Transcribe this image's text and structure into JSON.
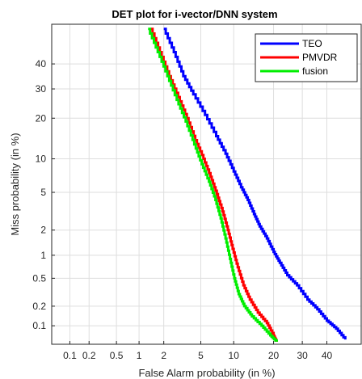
{
  "chart_data": {
    "type": "line",
    "title": "DET plot for i-vector/DNN system",
    "xlabel": "False Alarm probability (in %)",
    "ylabel": "Miss probability (in %)",
    "x_scale": "probit",
    "y_scale": "probit",
    "xlim": [
      0.05,
      55
    ],
    "ylim": [
      0.05,
      57
    ],
    "x_ticks": [
      0.1,
      0.2,
      0.5,
      1,
      2,
      5,
      10,
      20,
      30,
      40
    ],
    "x_tick_labels": [
      "0.1",
      "0.2",
      "0.5",
      "1",
      "2",
      "5",
      "10",
      "20",
      "30",
      "40"
    ],
    "y_ticks": [
      0.1,
      0.2,
      0.5,
      1,
      2,
      5,
      10,
      20,
      30,
      40
    ],
    "y_tick_labels": [
      "0.1",
      "0.2",
      "0.5",
      "1",
      "2",
      "5",
      "10",
      "20",
      "30",
      "40"
    ],
    "grid": true,
    "legend_position": "top-right",
    "series": [
      {
        "name": "TEO",
        "color": "#0000ff",
        "x": [
          2.0,
          2.6,
          3.3,
          4.2,
          5.5,
          7.0,
          8.5,
          10.0,
          11.5,
          13.0,
          14.5,
          16.0,
          18.0,
          20.0,
          22.0,
          24.5,
          28.0,
          32.0,
          36.0,
          40.0,
          44.0,
          48.0
        ],
        "y": [
          55.0,
          45.0,
          35.0,
          28.0,
          21.0,
          15.0,
          11.0,
          7.8,
          5.6,
          4.2,
          3.0,
          2.2,
          1.6,
          1.1,
          0.8,
          0.55,
          0.4,
          0.25,
          0.18,
          0.12,
          0.09,
          0.06
        ]
      },
      {
        "name": "PMVDR",
        "color": "#ff0000",
        "x": [
          1.4,
          1.8,
          2.3,
          2.9,
          3.6,
          4.4,
          5.3,
          6.2,
          7.1,
          8.0,
          8.9,
          9.8,
          10.8,
          12.0,
          13.5,
          15.5,
          18.0,
          20.0,
          21.0
        ],
        "y": [
          55.0,
          45.0,
          35.0,
          27.0,
          20.0,
          14.0,
          10.0,
          7.0,
          4.8,
          3.2,
          2.0,
          1.2,
          0.7,
          0.4,
          0.25,
          0.16,
          0.11,
          0.07,
          0.055
        ]
      },
      {
        "name": "fusion",
        "color": "#00ee00",
        "x": [
          1.3,
          1.7,
          2.2,
          2.8,
          3.5,
          4.3,
          5.1,
          6.0,
          6.9,
          7.7,
          8.5,
          9.3,
          10.1,
          11.0,
          12.2,
          14.0,
          16.5,
          19.0,
          21.0
        ],
        "y": [
          55.0,
          45.0,
          35.0,
          26.0,
          19.0,
          13.0,
          9.0,
          6.3,
          4.2,
          2.7,
          1.6,
          0.9,
          0.5,
          0.3,
          0.2,
          0.14,
          0.1,
          0.07,
          0.055
        ]
      }
    ]
  }
}
